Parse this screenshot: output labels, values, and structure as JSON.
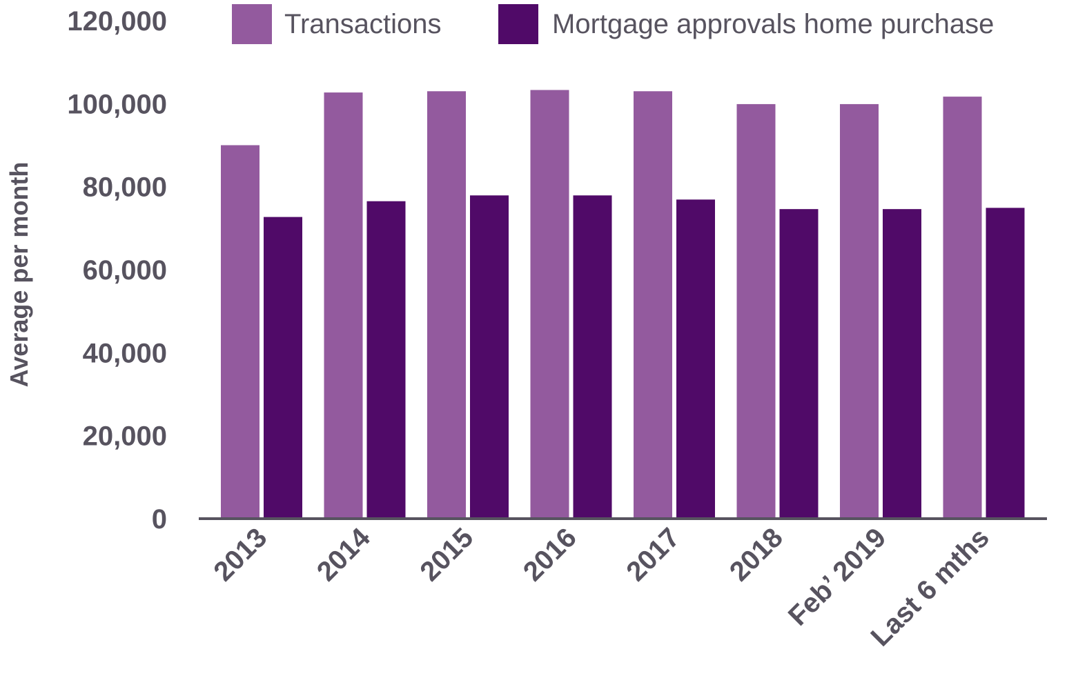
{
  "chart_data": {
    "type": "bar",
    "title": "",
    "xlabel": "",
    "ylabel": "Average per month",
    "ylim": [
      0,
      120000
    ],
    "yticks": [
      "0",
      "20,000",
      "40,000",
      "60,000",
      "80,000",
      "100,000",
      "120,000"
    ],
    "ytick_values": [
      0,
      20000,
      40000,
      60000,
      80000,
      100000,
      120000
    ],
    "grid": false,
    "legend_position": "top-right",
    "categories": [
      "2013",
      "2014",
      "2015",
      "2016",
      "2017",
      "2018",
      "Feb’ 2019",
      "Last 6 mths"
    ],
    "series": [
      {
        "name": "Transactions",
        "color": "#935a9e",
        "values": [
          90000,
          102700,
          103000,
          103300,
          103000,
          99900,
          99900,
          101700
        ]
      },
      {
        "name": "Mortgage approvals home purchase",
        "color": "#500a68",
        "values": [
          72700,
          76500,
          77900,
          77900,
          76900,
          74600,
          74600,
          74900
        ]
      }
    ]
  }
}
